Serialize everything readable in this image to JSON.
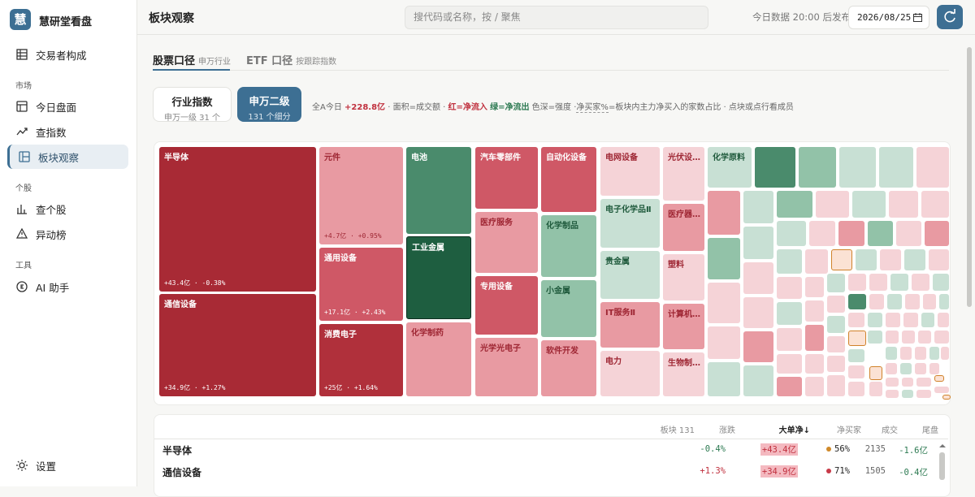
{
  "sidebar": {
    "logo": "慧",
    "brand": "慧研堂看盘",
    "top_item": "交易者构成",
    "sections": [
      {
        "title": "市场",
        "items": [
          "今日盘面",
          "查指数",
          "板块观察"
        ]
      },
      {
        "title": "个股",
        "items": [
          "查个股",
          "异动榜"
        ]
      },
      {
        "title": "工具",
        "items": [
          "AI 助手"
        ]
      }
    ],
    "settings": "设置"
  },
  "header": {
    "title": "板块观察",
    "search_placeholder": "搜代码或名称，按 / 聚焦",
    "publish_note": "今日数据 20:00 后发布",
    "date": "2026/08/25"
  },
  "tabs": [
    {
      "label": "股票口径",
      "sub": "申万行业"
    },
    {
      "label": "ETF 口径",
      "sub": "按跟踪指数"
    }
  ],
  "toggles": [
    {
      "label": "行业指数",
      "sub": "申万一级 31 个"
    },
    {
      "label": "申万二级",
      "sub": "131 个细分"
    }
  ],
  "info": {
    "prefix": "全A今日",
    "total": "+228.8亿",
    "area": "· 面积=成交额 ·",
    "red": "红=净流入",
    "green": "绿=净流出",
    "depth": "色深=强度 ·",
    "buyer": "净买家%",
    "rest": "=板块内主力净买入的家数占比 · 点块或点行看成员"
  },
  "treemap": {
    "tiles": [
      {
        "name": "半导体",
        "detail": "+43.4亿 · -0.38%",
        "color": "#a82a35"
      },
      {
        "name": "通信设备",
        "detail": "+34.9亿 · +1.27%",
        "color": "#a82a35"
      },
      {
        "name": "元件",
        "detail": "+4.7亿 · +0.95%",
        "color": "#e89aa2"
      },
      {
        "name": "通用设备",
        "detail": "+17.1亿 · +2.43%",
        "color": "#cf5866"
      },
      {
        "name": "消费电子",
        "detail": "+25亿 · +1.64%",
        "color": "#b0303b"
      },
      {
        "name": "电池",
        "color": "#4a8b6c"
      },
      {
        "name": "工业金属",
        "color": "#1e5e40"
      },
      {
        "name": "化学制药",
        "color": "#e89aa2"
      },
      {
        "name": "汽车零部件",
        "color": "#cf5866"
      },
      {
        "name": "医疗服务",
        "color": "#e89aa2"
      },
      {
        "name": "专用设备",
        "color": "#cf5866"
      },
      {
        "name": "光学光电子",
        "color": "#e89aa2"
      },
      {
        "name": "自动化设备",
        "color": "#cf5866"
      },
      {
        "name": "化学制品",
        "color": "#92c2a8"
      },
      {
        "name": "小金属",
        "color": "#92c2a8"
      },
      {
        "name": "软件开发",
        "color": "#e89aa2"
      },
      {
        "name": "电网设备",
        "color": "#f5d3d7"
      },
      {
        "name": "电子化学品Ⅱ",
        "color": "#c8e0d4"
      },
      {
        "name": "贵金属",
        "color": "#c8e0d4"
      },
      {
        "name": "IT服务Ⅱ",
        "color": "#e89aa2"
      },
      {
        "name": "电力",
        "color": "#f5d3d7"
      },
      {
        "name": "光伏设…",
        "color": "#f5d3d7"
      },
      {
        "name": "医疗器…",
        "color": "#e89aa2"
      },
      {
        "name": "塑料",
        "color": "#f5d3d7"
      },
      {
        "name": "计算机…",
        "color": "#e89aa2"
      },
      {
        "name": "生物制…",
        "color": "#f5d3d7"
      },
      {
        "name": "化学原料",
        "color": "#c8e0d4"
      }
    ]
  },
  "table": {
    "headers": [
      "板块 131",
      "涨跌",
      "大单净↓",
      "净买家",
      "成交",
      "尾盘"
    ],
    "rows": [
      {
        "name": "半导体",
        "change": "-0.4%",
        "net": "+43.4亿",
        "buyer": "56%",
        "buyer_color": "#d08a2a",
        "volume": "2135",
        "tail": "-1.6亿"
      },
      {
        "name": "通信设备",
        "change": "+1.3%",
        "net": "+34.9亿",
        "buyer": "71%",
        "buyer_color": "#c83a48",
        "volume": "1505",
        "tail": "-0.4亿"
      }
    ]
  }
}
